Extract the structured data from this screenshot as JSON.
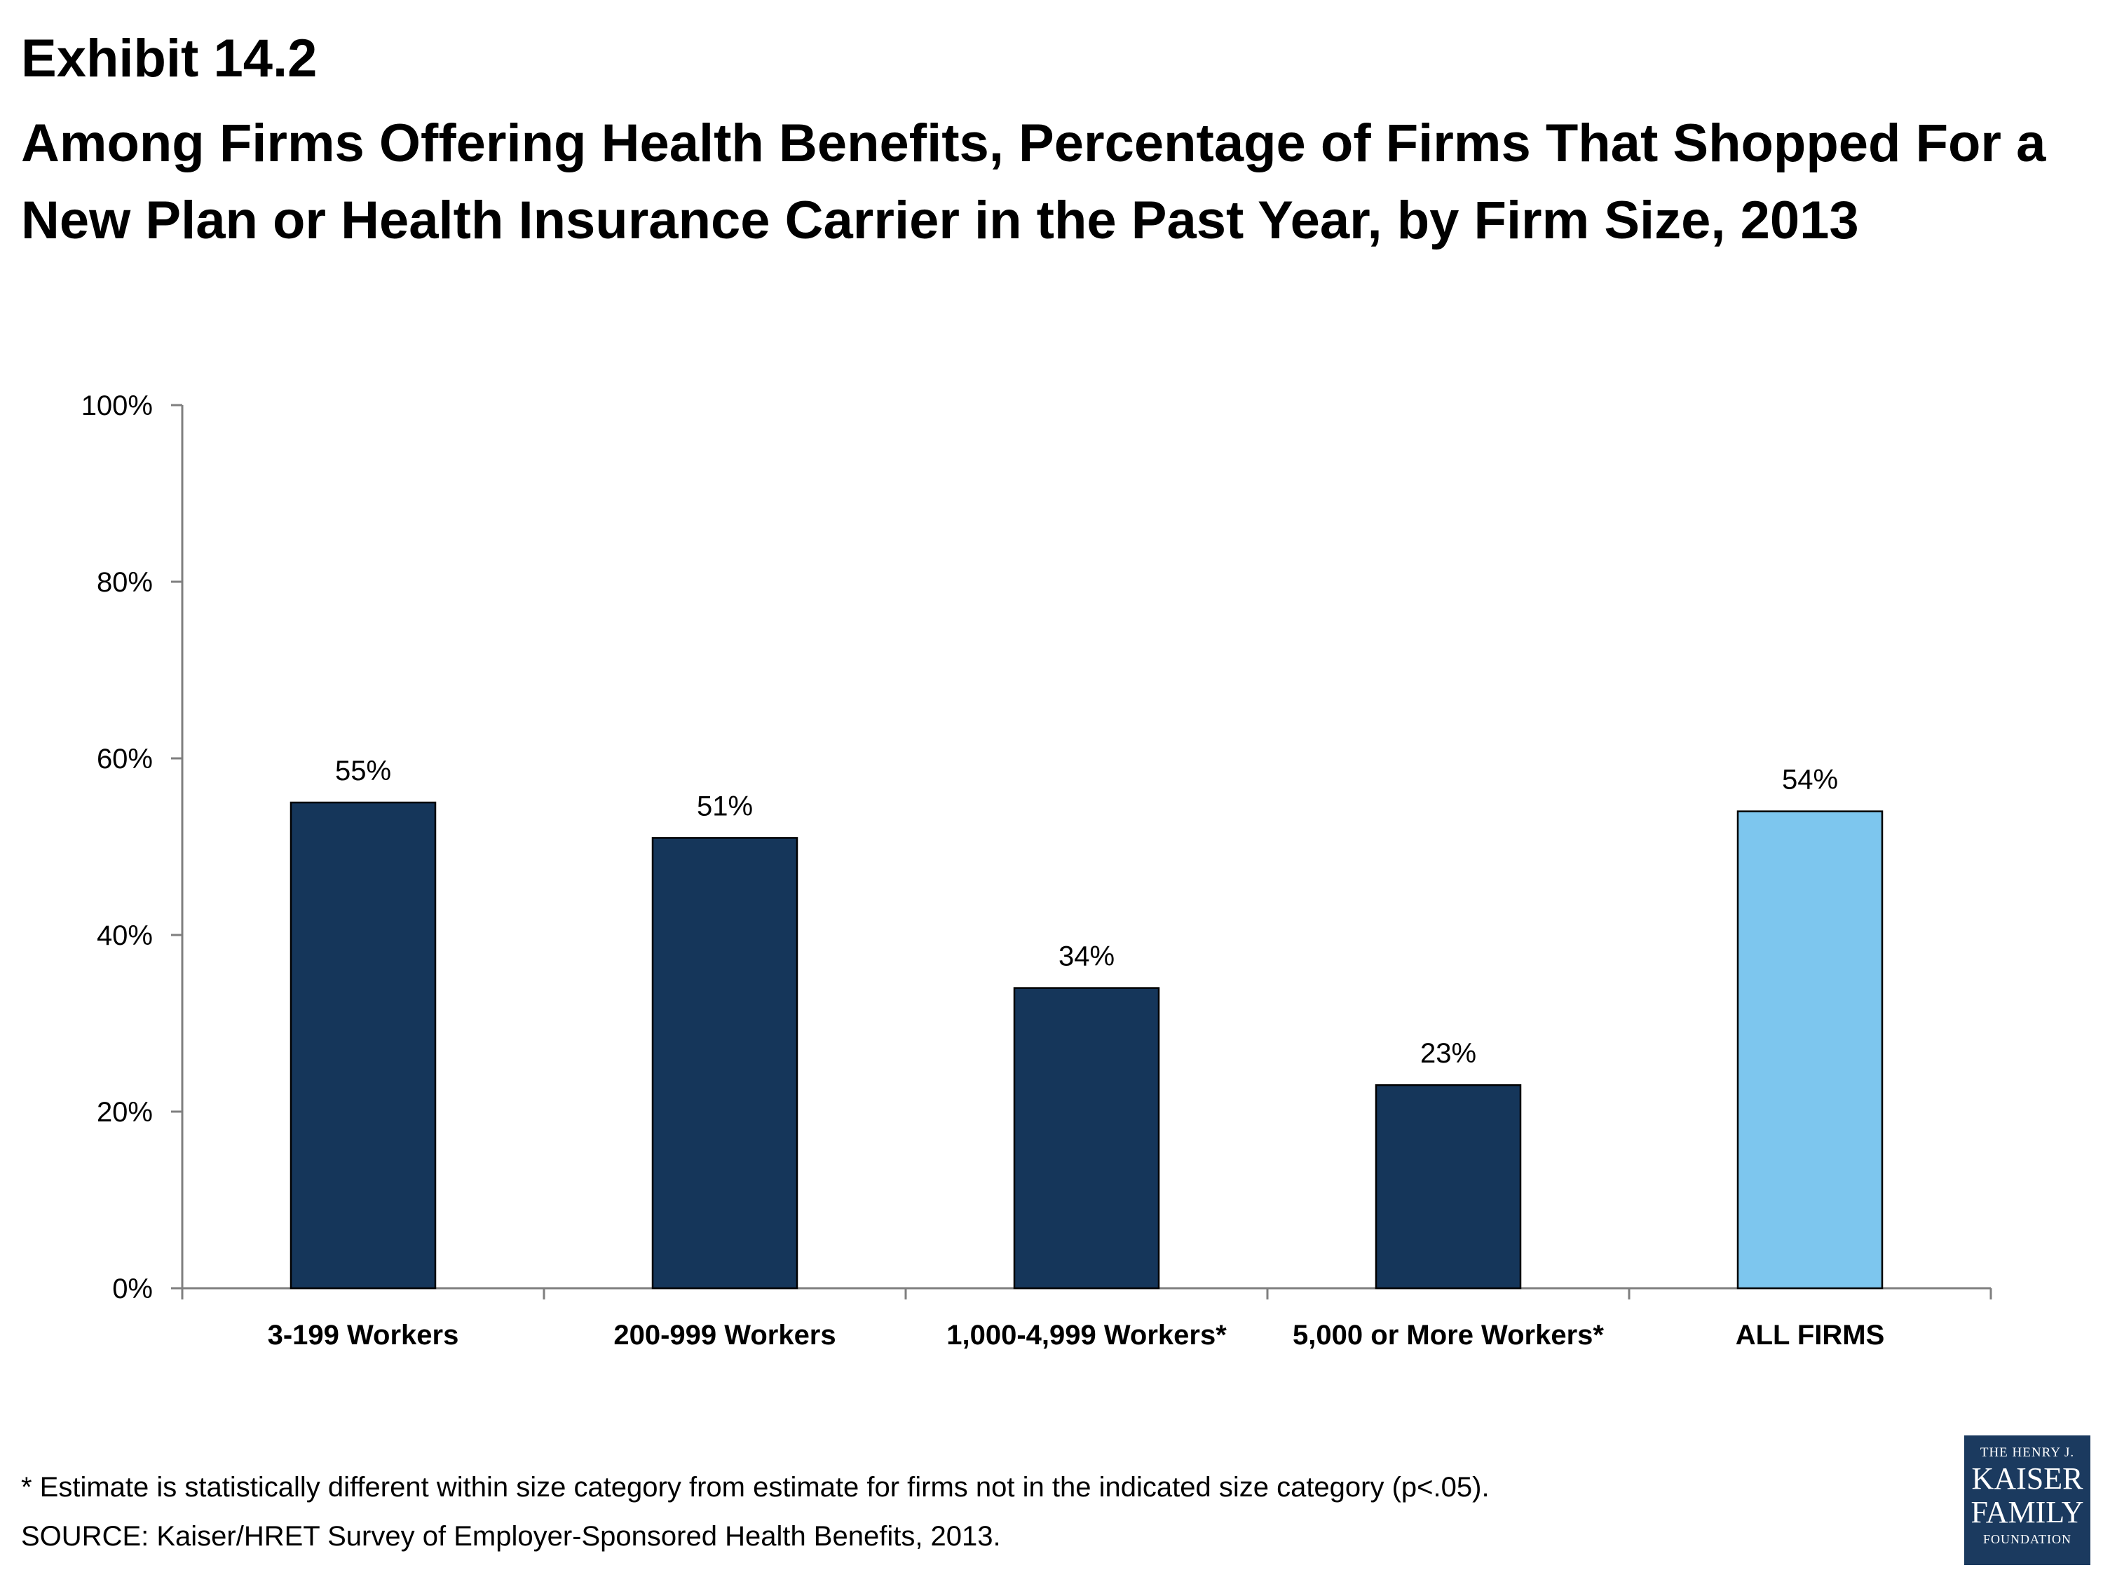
{
  "header": {
    "exhibit": "Exhibit 14.2",
    "title": "Among Firms Offering Health Benefits, Percentage of Firms That Shopped For a New Plan or Health Insurance Carrier in the Past Year, by Firm Size, 2013"
  },
  "chart_data": {
    "type": "bar",
    "categories": [
      "3-199 Workers",
      "200-999 Workers",
      "1,000-4,999 Workers*",
      "5,000 or More Workers*",
      "ALL FIRMS"
    ],
    "values": [
      55,
      51,
      34,
      23,
      54
    ],
    "value_labels": [
      "55%",
      "51%",
      "34%",
      "23%",
      "54%"
    ],
    "y_ticks": [
      0,
      20,
      40,
      60,
      80,
      100
    ],
    "y_tick_labels": [
      "0%",
      "20%",
      "40%",
      "60%",
      "80%",
      "100%"
    ],
    "ylim": [
      0,
      100
    ],
    "grid": false,
    "bar_colors": [
      "#15365a",
      "#15365a",
      "#15365a",
      "#15365a",
      "#7dc6ee"
    ]
  },
  "footer": {
    "footnote": "* Estimate is statistically different within size category from estimate for firms not in the indicated size category (p<.05).",
    "source": "SOURCE: Kaiser/HRET Survey of Employer-Sponsored Health Benefits, 2013."
  },
  "logo": {
    "line1": "THE HENRY J.",
    "line2": "KAISER",
    "line3": "FAMILY",
    "line4": "FOUNDATION"
  }
}
